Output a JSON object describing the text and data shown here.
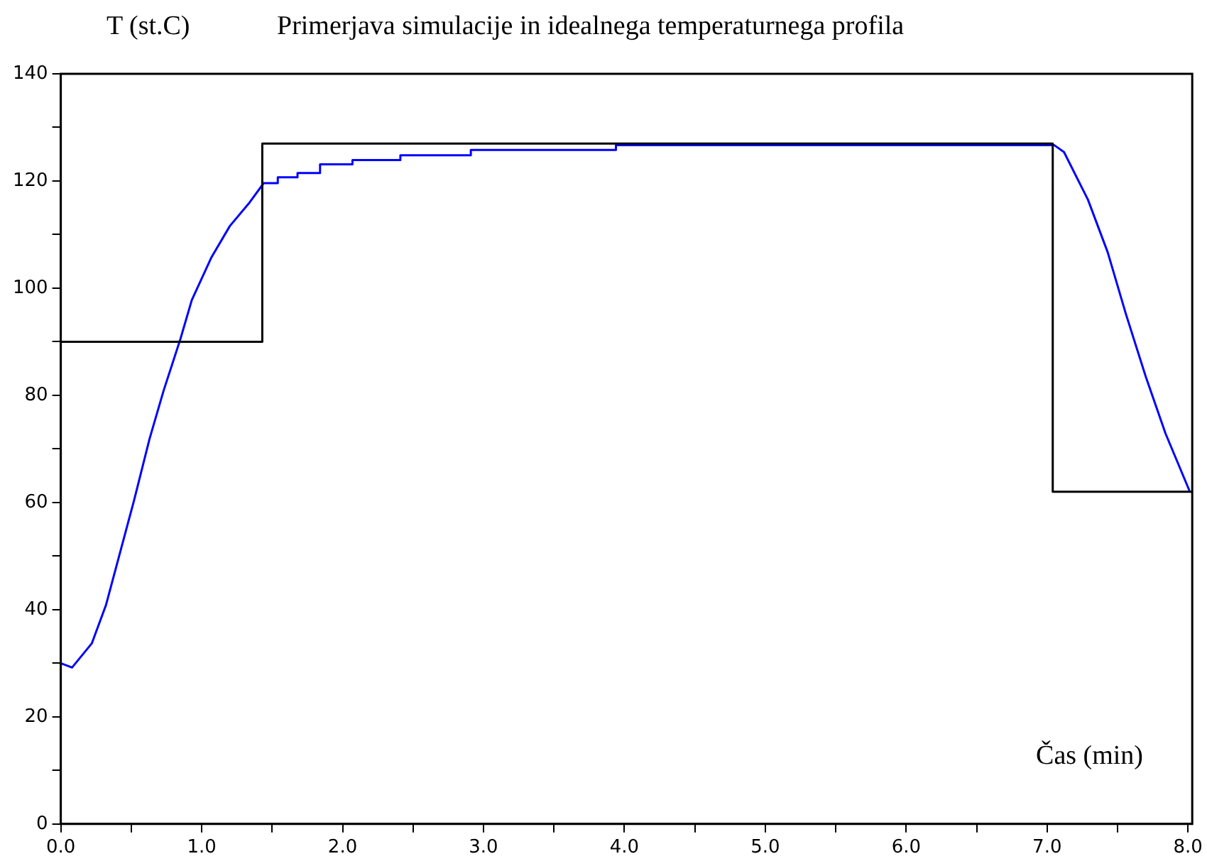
{
  "chart_data": {
    "type": "line",
    "title": "Primerjava simulacije in idealnega temperaturnega profila",
    "xlabel": "Čas (min)",
    "ylabel": "T (st.C)",
    "xlim": [
      0,
      8.03
    ],
    "ylim": [
      0,
      140
    ],
    "xticks": [
      {
        "value": 0,
        "label": "0.0"
      },
      {
        "value": 0.5,
        "label": null
      },
      {
        "value": 1,
        "label": "1.0"
      },
      {
        "value": 1.5,
        "label": null
      },
      {
        "value": 2,
        "label": "2.0"
      },
      {
        "value": 2.5,
        "label": null
      },
      {
        "value": 3,
        "label": "3.0"
      },
      {
        "value": 3.5,
        "label": null
      },
      {
        "value": 4,
        "label": "4.0"
      },
      {
        "value": 4.5,
        "label": null
      },
      {
        "value": 5,
        "label": "5.0"
      },
      {
        "value": 5.5,
        "label": null
      },
      {
        "value": 6,
        "label": "6.0"
      },
      {
        "value": 6.5,
        "label": null
      },
      {
        "value": 7,
        "label": "7.0"
      },
      {
        "value": 7.5,
        "label": null
      },
      {
        "value": 8,
        "label": "8.0"
      }
    ],
    "yticks": [
      0,
      {
        "value": 10,
        "label": null
      },
      20,
      {
        "value": 30,
        "label": null
      },
      40,
      {
        "value": 50,
        "label": null
      },
      60,
      {
        "value": 70,
        "label": null
      },
      80,
      {
        "value": 90,
        "label": null
      },
      100,
      {
        "value": 110,
        "label": null
      },
      120,
      {
        "value": 130,
        "label": null
      },
      140
    ],
    "grid": false,
    "legend": false,
    "marker": "none",
    "line_style": "solid",
    "series": [
      {
        "type": "step",
        "color": "#000000",
        "x": [
          0,
          1.43,
          7.04,
          8.03
        ],
        "values": [
          90,
          127,
          62,
          62
        ]
      },
      {
        "type": "line",
        "color": "#0000ff",
        "x": [
          0,
          0.08,
          0.22,
          0.32,
          0.42,
          0.52,
          0.63,
          0.73,
          0.85,
          0.93,
          1.07,
          1.2,
          1.34,
          1.44,
          1.54,
          1.54,
          1.68,
          1.68,
          1.84,
          1.84,
          2.07,
          2.07,
          2.41,
          2.41,
          2.91,
          2.91,
          3.94,
          3.94,
          7.05,
          7.12,
          7.29,
          7.43,
          7.56,
          7.7,
          7.84,
          8.01
        ],
        "values": [
          30,
          29.2,
          33.7,
          40.8,
          50.6,
          60.4,
          71.9,
          80.9,
          90.6,
          97.8,
          105.8,
          111.6,
          116,
          119.6,
          119.6,
          120.7,
          120.7,
          121.5,
          121.5,
          123.1,
          123.1,
          123.9,
          123.9,
          124.8,
          124.8,
          125.8,
          125.8,
          126.7,
          126.7,
          125.4,
          116.5,
          106.7,
          95.1,
          83.5,
          72.9,
          62.2
        ]
      }
    ]
  }
}
